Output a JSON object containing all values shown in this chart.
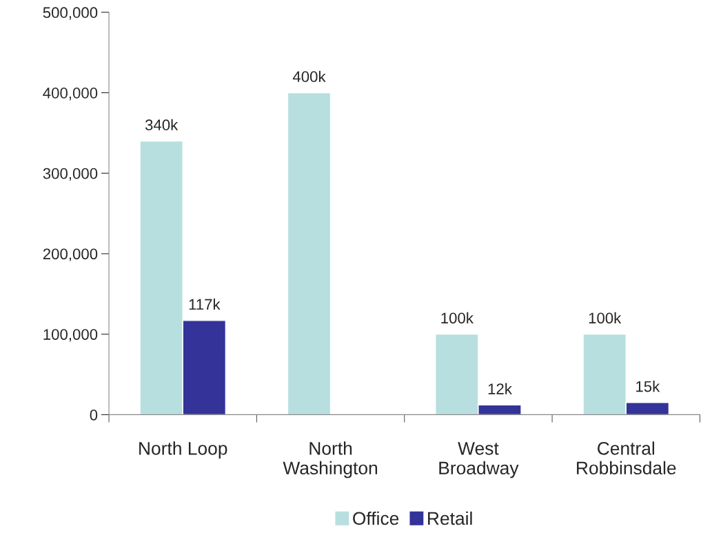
{
  "chart_data": {
    "type": "bar",
    "categories": [
      "North Loop",
      "North\nWashington",
      "West\nBroadway",
      "Central\nRobbinsdale"
    ],
    "series": [
      {
        "name": "Office",
        "color": "#b7dfe0",
        "values": [
          340000,
          400000,
          100000,
          100000
        ],
        "value_labels": [
          "340k",
          "400k",
          "100k",
          "100k"
        ]
      },
      {
        "name": "Retail",
        "color": "#333399",
        "values": [
          117000,
          null,
          12000,
          15000
        ],
        "value_labels": [
          "117k",
          null,
          "12k",
          "15k"
        ]
      }
    ],
    "ylim": [
      0,
      500000
    ],
    "yticks": [
      {
        "value": 0,
        "label": "0"
      },
      {
        "value": 100000,
        "label": "100,000"
      },
      {
        "value": 200000,
        "label": "200,000"
      },
      {
        "value": 300000,
        "label": "300,000"
      },
      {
        "value": 400000,
        "label": "400,000"
      },
      {
        "value": 500000,
        "label": "500,000"
      }
    ],
    "grid": false,
    "legend": "bottom"
  }
}
